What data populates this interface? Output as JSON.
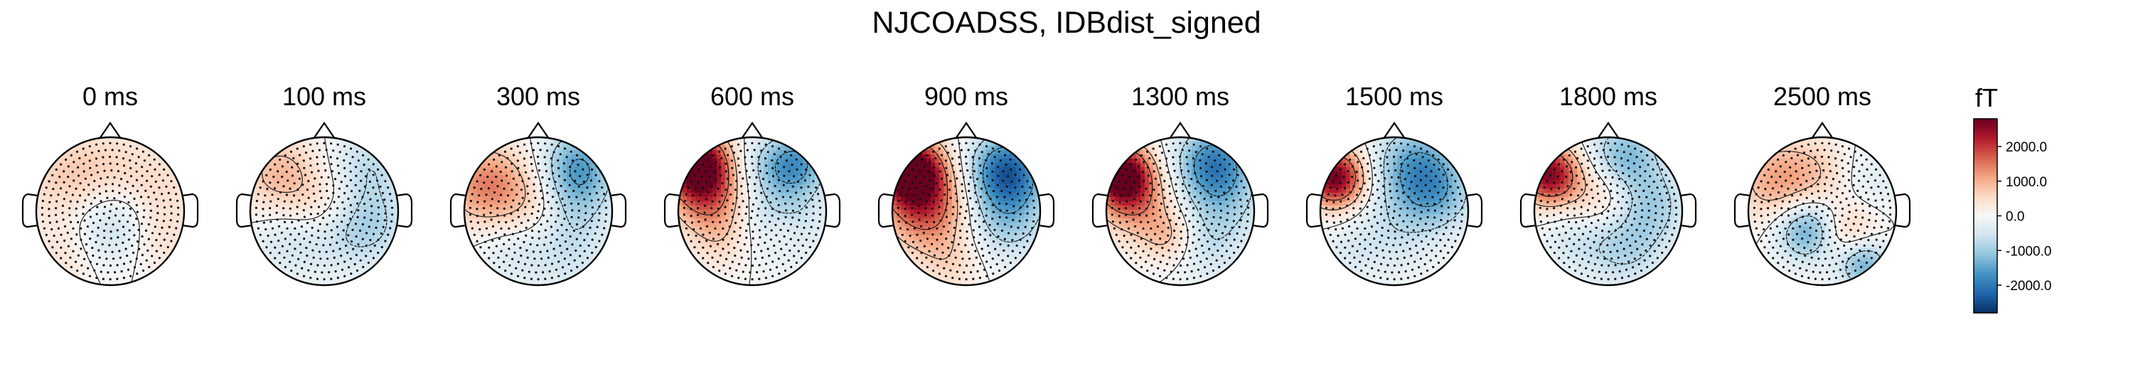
{
  "chart_data": {
    "type": "heatmap",
    "title": "NJCOADSS, IDBdist_signed",
    "unit_label": "fT",
    "panels": [
      {
        "label": "0 ms",
        "blobs": [
          {
            "x": -0.55,
            "y": 0.45,
            "v": 700,
            "s": 0.45
          },
          {
            "x": 0.15,
            "y": 0.55,
            "v": 400,
            "s": 0.4
          },
          {
            "x": 0.05,
            "y": -0.2,
            "v": -900,
            "s": 0.4
          },
          {
            "x": 0.6,
            "y": -0.3,
            "v": 600,
            "s": 0.4
          },
          {
            "x": -0.6,
            "y": -0.6,
            "v": 400,
            "s": 0.35
          },
          {
            "x": 0.7,
            "y": 0.4,
            "v": 300,
            "s": 0.3
          }
        ]
      },
      {
        "label": "100 ms",
        "blobs": [
          {
            "x": -0.6,
            "y": 0.5,
            "v": 900,
            "s": 0.4
          },
          {
            "x": 0.6,
            "y": 0.6,
            "v": -700,
            "s": 0.4
          },
          {
            "x": 0.0,
            "y": 0.05,
            "v": 600,
            "s": 0.35
          },
          {
            "x": 0.25,
            "y": -0.25,
            "v": -700,
            "s": 0.4
          },
          {
            "x": -0.5,
            "y": -0.4,
            "v": -500,
            "s": 0.35
          },
          {
            "x": 0.7,
            "y": -0.2,
            "v": -500,
            "s": 0.35
          }
        ]
      },
      {
        "label": "300 ms",
        "blobs": [
          {
            "x": -0.7,
            "y": 0.35,
            "v": 1400,
            "s": 0.4
          },
          {
            "x": 0.55,
            "y": 0.65,
            "v": -1300,
            "s": 0.35
          },
          {
            "x": 0.5,
            "y": 0.2,
            "v": -700,
            "s": 0.35
          },
          {
            "x": -0.05,
            "y": 0.1,
            "v": 500,
            "s": 0.35
          },
          {
            "x": 0.4,
            "y": -0.5,
            "v": -600,
            "s": 0.4
          },
          {
            "x": -0.4,
            "y": -0.55,
            "v": -400,
            "s": 0.35
          }
        ]
      },
      {
        "label": "600 ms",
        "blobs": [
          {
            "x": -0.75,
            "y": 0.65,
            "v": 3000,
            "s": 0.3
          },
          {
            "x": -0.6,
            "y": 0.2,
            "v": 1500,
            "s": 0.35
          },
          {
            "x": 0.6,
            "y": 0.65,
            "v": -1500,
            "s": 0.3
          },
          {
            "x": 0.15,
            "y": 0.6,
            "v": -500,
            "s": 0.3
          },
          {
            "x": 0.4,
            "y": -0.1,
            "v": -800,
            "s": 0.4
          },
          {
            "x": 0.4,
            "y": -0.3,
            "v": 400,
            "s": 0.2
          },
          {
            "x": -0.4,
            "y": -0.4,
            "v": 500,
            "s": 0.3
          }
        ]
      },
      {
        "label": "900 ms",
        "blobs": [
          {
            "x": -0.75,
            "y": 0.55,
            "v": 3200,
            "s": 0.3
          },
          {
            "x": -0.55,
            "y": 0.05,
            "v": 1800,
            "s": 0.4
          },
          {
            "x": 0.55,
            "y": 0.55,
            "v": -2200,
            "s": 0.35
          },
          {
            "x": 0.55,
            "y": -0.1,
            "v": -1000,
            "s": 0.4
          },
          {
            "x": -0.2,
            "y": -0.7,
            "v": 500,
            "s": 0.3
          }
        ]
      },
      {
        "label": "1300 ms",
        "blobs": [
          {
            "x": -0.8,
            "y": 0.5,
            "v": 3000,
            "s": 0.28
          },
          {
            "x": -0.6,
            "y": 0.1,
            "v": 1200,
            "s": 0.35
          },
          {
            "x": 0.45,
            "y": 0.65,
            "v": -1800,
            "s": 0.35
          },
          {
            "x": 0.6,
            "y": 0.1,
            "v": -700,
            "s": 0.4
          },
          {
            "x": -0.15,
            "y": -0.35,
            "v": 800,
            "s": 0.25
          },
          {
            "x": 0.35,
            "y": -0.5,
            "v": -500,
            "s": 0.35
          }
        ]
      },
      {
        "label": "1500 ms",
        "blobs": [
          {
            "x": -0.8,
            "y": 0.45,
            "v": 2800,
            "s": 0.28
          },
          {
            "x": 0.3,
            "y": 0.6,
            "v": -1500,
            "s": 0.4
          },
          {
            "x": 0.6,
            "y": 0.2,
            "v": -900,
            "s": 0.35
          },
          {
            "x": 0.0,
            "y": -0.3,
            "v": -500,
            "s": 0.4
          },
          {
            "x": -0.6,
            "y": -0.55,
            "v": -300,
            "s": 0.3
          }
        ]
      },
      {
        "label": "1800 ms",
        "blobs": [
          {
            "x": -0.8,
            "y": 0.5,
            "v": 2600,
            "s": 0.28
          },
          {
            "x": -0.05,
            "y": 0.25,
            "v": 900,
            "s": 0.35
          },
          {
            "x": 0.2,
            "y": 0.7,
            "v": -1400,
            "s": 0.35
          },
          {
            "x": 0.6,
            "y": 0.1,
            "v": -800,
            "s": 0.35
          },
          {
            "x": 0.2,
            "y": -0.45,
            "v": -900,
            "s": 0.4
          },
          {
            "x": -0.5,
            "y": -0.4,
            "v": -400,
            "s": 0.3
          }
        ]
      },
      {
        "label": "2500 ms",
        "blobs": [
          {
            "x": -0.6,
            "y": 0.4,
            "v": 1100,
            "s": 0.4
          },
          {
            "x": 0.0,
            "y": 0.5,
            "v": 500,
            "s": 0.35
          },
          {
            "x": -0.2,
            "y": -0.25,
            "v": -1600,
            "s": 0.3
          },
          {
            "x": 0.35,
            "y": -0.3,
            "v": 900,
            "s": 0.3
          },
          {
            "x": 0.55,
            "y": -0.7,
            "v": -1500,
            "s": 0.25
          },
          {
            "x": 0.6,
            "y": 0.4,
            "v": -400,
            "s": 0.35
          }
        ]
      }
    ],
    "colorbar": {
      "range": [
        -2800,
        2800
      ],
      "ticks": [
        2000.0,
        1000.0,
        0.0,
        -1000.0,
        -2000.0
      ],
      "tick_labels": [
        "2000.0",
        "1000.0",
        "0.0",
        "-1000.0",
        "-2000.0"
      ],
      "colormap": "RdBu_r",
      "colors": [
        "#053061",
        "#2166ac",
        "#4393c3",
        "#92c5de",
        "#d1e5f0",
        "#f7f7f7",
        "#fddbc7",
        "#f4a582",
        "#d6604d",
        "#b2182b",
        "#67001f"
      ]
    },
    "contour_levels": [
      -1500,
      -750,
      0,
      750,
      1500
    ]
  }
}
